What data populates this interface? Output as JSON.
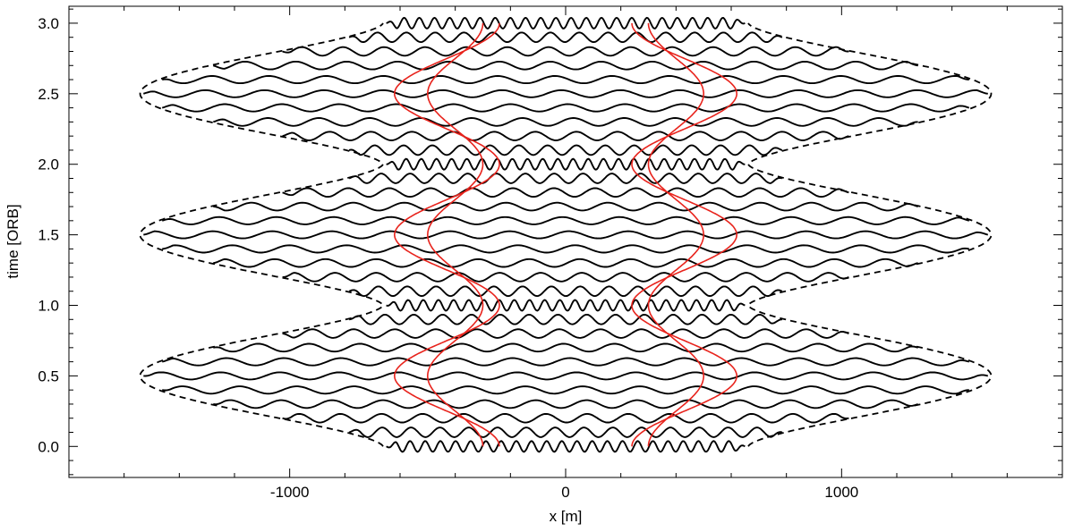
{
  "chart_data": {
    "type": "line",
    "title": "",
    "xlabel": "x [m]",
    "ylabel": "time [ORB]",
    "xlim": [
      -1800,
      1800
    ],
    "ylim": [
      -0.22,
      3.12
    ],
    "x_ticks": [
      -1000,
      0,
      1000
    ],
    "x_tick_labels": [
      "-1000",
      "0",
      "1000"
    ],
    "y_ticks": [
      0.0,
      0.5,
      1.0,
      1.5,
      2.0,
      2.5,
      3.0
    ],
    "y_tick_labels": [
      "0.0",
      "0.5",
      "1.0",
      "1.5",
      "2.0",
      "2.5",
      "3.0"
    ],
    "grid": false,
    "legend": "none",
    "colors": {
      "traces": "#000000",
      "envelope": "#000000",
      "red_paths": "#e8231c"
    },
    "envelope": {
      "style": "dashed",
      "periods_orb": [
        0,
        0.5,
        1.0,
        1.5,
        2.0,
        2.5,
        3.0
      ],
      "half_width_m": [
        650,
        1530,
        680,
        1530,
        680,
        1530,
        650
      ]
    },
    "wave_traces": {
      "style": "solid",
      "times_orb": [
        0.0,
        0.1,
        0.2,
        0.3,
        0.4,
        0.5,
        0.6,
        0.7,
        0.8,
        0.9,
        1.0,
        1.1,
        1.2,
        1.3,
        1.4,
        1.5,
        1.6,
        1.7,
        1.8,
        1.9,
        2.0,
        2.1,
        2.2,
        2.3,
        2.4,
        2.5,
        2.6,
        2.7,
        2.8,
        2.9,
        3.0
      ]
    },
    "red_paths": [
      {
        "x_at_0_orb": -240,
        "x_at_0_5_orb": -620
      },
      {
        "x_at_0_orb": -300,
        "x_at_0_5_orb": -500
      },
      {
        "x_at_0_orb": 240,
        "x_at_0_5_orb": 620
      },
      {
        "x_at_0_orb": 300,
        "x_at_0_5_orb": 500
      }
    ]
  }
}
